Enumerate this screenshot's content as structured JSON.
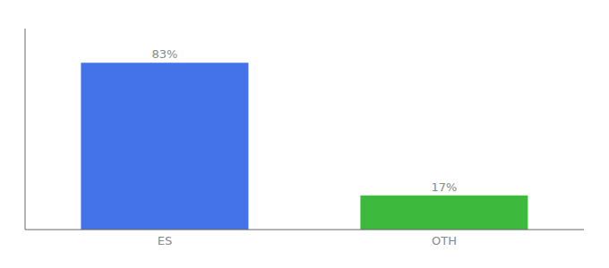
{
  "chart_data": {
    "type": "bar",
    "categories": [
      "ES",
      "OTH"
    ],
    "values": [
      83,
      17
    ],
    "value_labels": [
      "83%",
      "17%"
    ],
    "colors": [
      "#4472e8",
      "#3dba3d"
    ],
    "ylim": [
      0,
      100
    ],
    "data_labels": true,
    "tick_labels": "x",
    "grid": false
  }
}
